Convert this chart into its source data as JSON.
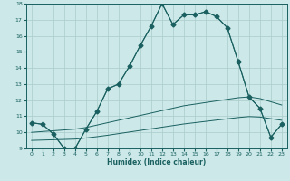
{
  "title": "",
  "xlabel": "Humidex (Indice chaleur)",
  "ylabel": "",
  "bg_color": "#cce8e8",
  "grid_color": "#aacccc",
  "line_color": "#1a6060",
  "xlim": [
    -0.5,
    23.5
  ],
  "ylim": [
    9,
    18
  ],
  "xticks": [
    0,
    1,
    2,
    3,
    4,
    5,
    6,
    7,
    8,
    9,
    10,
    11,
    12,
    13,
    14,
    15,
    16,
    17,
    18,
    19,
    20,
    21,
    22,
    23
  ],
  "yticks": [
    9,
    10,
    11,
    12,
    13,
    14,
    15,
    16,
    17,
    18
  ],
  "series": [
    {
      "x": [
        0,
        1,
        2,
        3,
        4,
        5,
        6,
        7,
        8,
        9,
        10,
        11,
        12,
        13,
        14,
        15,
        16,
        17,
        18,
        19
      ],
      "y": [
        10.6,
        10.5,
        9.9,
        9.0,
        9.0,
        10.2,
        11.3,
        12.7,
        13.0,
        14.1,
        15.4,
        16.6,
        18.0,
        16.7,
        17.3,
        17.3,
        17.5,
        17.2,
        16.5,
        14.4
      ],
      "marker": "D",
      "markersize": 2.5,
      "linewidth": 0.8
    },
    {
      "x": [
        19,
        20,
        21,
        22,
        23
      ],
      "y": [
        14.4,
        12.2,
        11.5,
        9.7,
        10.5
      ],
      "marker": "D",
      "markersize": 2.5,
      "linewidth": 0.8
    },
    {
      "x": [
        0,
        1,
        2,
        3,
        4,
        5,
        6,
        7,
        8,
        9,
        10,
        11,
        12,
        13,
        14,
        15,
        16,
        17,
        18,
        19,
        20,
        21,
        22,
        23
      ],
      "y": [
        10.6,
        10.5,
        9.9,
        9.0,
        9.0,
        10.2,
        11.3,
        12.7,
        13.0,
        14.1,
        15.4,
        16.6,
        18.0,
        16.7,
        17.3,
        17.3,
        17.5,
        17.2,
        16.5,
        14.4,
        12.2,
        11.5,
        9.7,
        10.5
      ],
      "marker": null,
      "markersize": 0,
      "linewidth": 0.7
    },
    {
      "x": [
        0,
        1,
        2,
        3,
        4,
        5,
        6,
        7,
        8,
        9,
        10,
        11,
        12,
        13,
        14,
        15,
        16,
        17,
        18,
        19,
        20,
        21,
        22,
        23
      ],
      "y": [
        10.0,
        10.05,
        10.1,
        10.15,
        10.2,
        10.3,
        10.45,
        10.6,
        10.75,
        10.9,
        11.05,
        11.2,
        11.35,
        11.5,
        11.65,
        11.75,
        11.85,
        11.95,
        12.05,
        12.15,
        12.2,
        12.1,
        11.9,
        11.7
      ],
      "marker": null,
      "markersize": 0,
      "linewidth": 0.7
    },
    {
      "x": [
        0,
        1,
        2,
        3,
        4,
        5,
        6,
        7,
        8,
        9,
        10,
        11,
        12,
        13,
        14,
        15,
        16,
        17,
        18,
        19,
        20,
        21,
        22,
        23
      ],
      "y": [
        9.5,
        9.52,
        9.54,
        9.56,
        9.58,
        9.65,
        9.73,
        9.82,
        9.92,
        10.02,
        10.12,
        10.22,
        10.32,
        10.42,
        10.52,
        10.6,
        10.68,
        10.76,
        10.84,
        10.92,
        10.98,
        10.95,
        10.85,
        10.75
      ],
      "marker": null,
      "markersize": 0,
      "linewidth": 0.7
    }
  ]
}
